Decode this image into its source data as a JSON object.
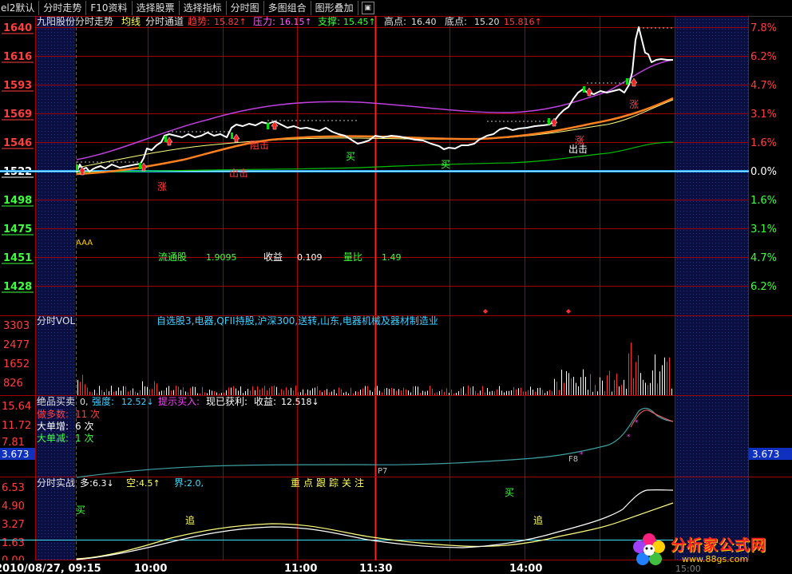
{
  "toolbar": {
    "items": [
      "el2默认",
      "分时走势",
      "F10资料",
      "选择股票",
      "选择指标",
      "分时图",
      "多图组合",
      "图形叠加"
    ],
    "icon": "screenshot-icon"
  },
  "main_panel": {
    "stock_name": "九阳股份分时走势",
    "series_label_1": "均线",
    "series_label_2": "分时通道",
    "trend_label": "趋势:",
    "trend_value": "15.82↑",
    "resist_label": "压力:",
    "resist_value": "16.15↑",
    "support_label": "支撑:",
    "support_value": "15.45↑",
    "high_label": "高点:",
    "high_value": "16.40",
    "low_label": "底点:",
    "low_value": "15.20",
    "last_value": "15.816↑",
    "left_axis": [
      "1640",
      "1616",
      "1593",
      "1569",
      "1546",
      "1522",
      "1498",
      "1475",
      "1451",
      "1428"
    ],
    "right_axis_up": [
      "7.8%",
      "6.2%",
      "4.7%",
      "3.1%",
      "1.6%"
    ],
    "right_axis_zero": "0.0%",
    "right_axis_down": [
      "1.6%",
      "3.1%",
      "4.7%",
      "6.2%"
    ],
    "float_share_label": "流通股",
    "float_share_value": "1.9095",
    "eps_label": "收益",
    "eps_value": "0.109",
    "vol_ratio_label": "量比",
    "vol_ratio_value": "1.49",
    "sig_buy": "买",
    "sig_exit": "出击",
    "sig_rise": "涨",
    "sig_block": "阻击",
    "wave_marker": "AAA"
  },
  "vol_panel": {
    "title": "分时VOL",
    "sectors": "自选股3,电器,QFII持股,沪深300,送转,山东,电器机械及器材制造业",
    "axis": [
      "3303",
      "2477",
      "1652",
      "826"
    ]
  },
  "bs_panel": {
    "title": "绝品买卖",
    "zero": "0,",
    "strength_label": "强度:",
    "strength_value": "12.52↓",
    "hint_label": "提示买入:",
    "profit_label": "现已获利:",
    "eps_label": "收益:",
    "eps_value": "12.518↓",
    "axis": [
      "15.64",
      "11.72",
      "7.81"
    ],
    "bull_count_label": "做多数:",
    "bull_count_value": "11 次",
    "big_add_label": "大单增:",
    "big_add_value": "6 次",
    "big_sub_label": "大单减:",
    "big_sub_value": "1 次",
    "current": "3.673",
    "marks": [
      "P7",
      "F8"
    ]
  },
  "fight_panel": {
    "title": "分时实战",
    "long_label": "多:",
    "long_value": "6.3↓",
    "short_label": "空:",
    "short_value": "4.5↑",
    "bound_label": "界:",
    "bound_value": "2.0,",
    "focus": "重点跟踪关注",
    "axis": [
      "6.53",
      "4.90",
      "3.27",
      "1.63",
      "0.00"
    ],
    "sig_buy": "买",
    "sig_chase": "追"
  },
  "time_axis": {
    "date": "2010/08/27, 09:15",
    "ticks": [
      "10:00",
      "11:00",
      "11:30",
      "14:00"
    ],
    "tail": "15:00"
  },
  "watermark": {
    "name": "分析家公式网",
    "url": "www.88gs.com"
  },
  "colors": {
    "grid": "#a00000",
    "price_line": "#ffffff",
    "avg_line": "#ff8020",
    "channel_upper": "#c040e0",
    "channel_mid": "#00c000",
    "up_text": "#ff4040",
    "down_text": "#40ff40",
    "base_line": "#40e0ff"
  }
}
